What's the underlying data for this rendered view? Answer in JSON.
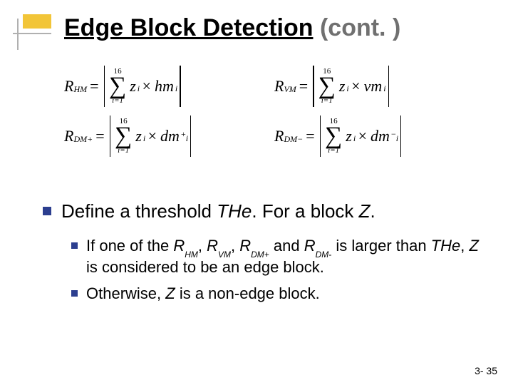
{
  "title": {
    "strong": "Edge Block Detection",
    "cont": "(cont. )"
  },
  "formulas": {
    "sum_top": "16",
    "sum_bottom": "i=1",
    "f": [
      {
        "R": "R",
        "Rsub": "HM",
        "t1": "z",
        "t1sub": "i",
        "op": "×",
        "t2": "hm",
        "t2sub": "i",
        "t2sup": ""
      },
      {
        "R": "R",
        "Rsub": "VM",
        "t1": "z",
        "t1sub": "i",
        "op": "×",
        "t2": "vm",
        "t2sub": "i",
        "t2sup": ""
      },
      {
        "R": "R",
        "Rsub": "DM+",
        "t1": "z",
        "t1sub": "i",
        "op": "×",
        "t2": "dm",
        "t2sub": "i",
        "t2sup": "+"
      },
      {
        "R": "R",
        "Rsub": "DM−",
        "t1": "z",
        "t1sub": "i",
        "op": "×",
        "t2": "dm",
        "t2sub": "i",
        "t2sup": "−"
      }
    ]
  },
  "bullet": {
    "pre": "Define a threshold ",
    "THe": "THe",
    "mid": ". For a block ",
    "Z": "Z",
    "post": "."
  },
  "sub": {
    "s1a": "If one of the ",
    "R1": "R",
    "R1s": "HM",
    "s1b": ", ",
    "R2": "R",
    "R2s": "VM",
    "s1c": ", ",
    "R3": "R",
    "R3s": "DM+",
    "s1d": " and ",
    "R4": "R",
    "R4s": "DM-",
    "s1e": " is larger than ",
    "THe2": "THe",
    "s1f": ", ",
    "Z2": "Z",
    "s1g": " is considered to be an edge block.",
    "s2a": "Otherwise, ",
    "Z3": "Z",
    "s2b": " is a non-edge block."
  },
  "pagenum": "3- 35",
  "colors": {
    "bullet_blue": "#2c3e8f",
    "accent_yellow": "#f2c538",
    "title_gray": "#707070"
  }
}
